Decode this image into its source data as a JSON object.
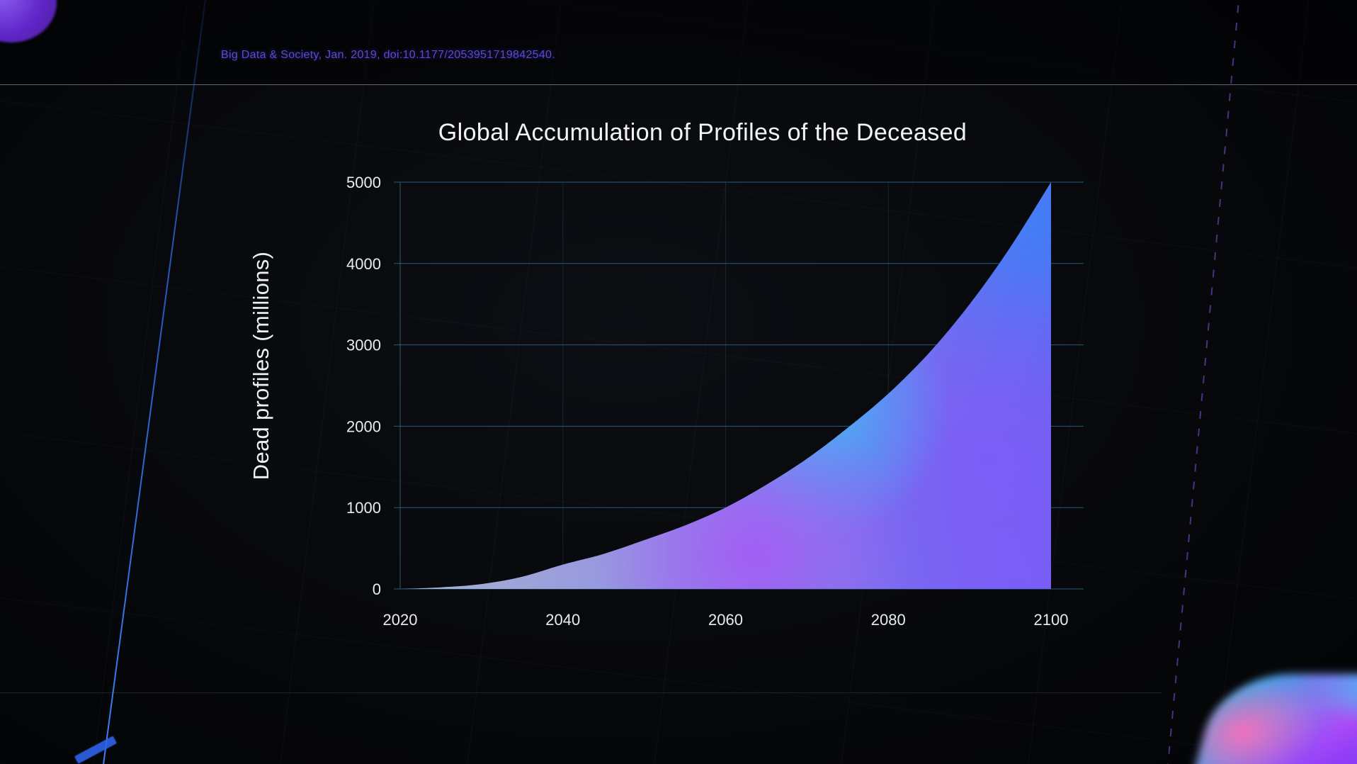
{
  "slide": {
    "citation": "Big Data & Society, Jan. 2019, doi:10.1177/2053951719842540."
  },
  "chart_data": {
    "type": "area",
    "title": "Global Accumulation of Profiles of the Deceased",
    "xlabel": "",
    "ylabel": "Dead profiles (millions)",
    "x": [
      2020,
      2025,
      2030,
      2035,
      2040,
      2045,
      2050,
      2055,
      2060,
      2065,
      2070,
      2075,
      2080,
      2085,
      2090,
      2095,
      2100
    ],
    "values": [
      0,
      20,
      60,
      150,
      300,
      430,
      600,
      780,
      1000,
      1280,
      1600,
      1980,
      2400,
      2900,
      3500,
      4200,
      5000
    ],
    "x_ticks": [
      2020,
      2040,
      2060,
      2080,
      2100
    ],
    "y_ticks": [
      0,
      1000,
      2000,
      3000,
      4000,
      5000
    ],
    "xlim": [
      2020,
      2100
    ],
    "ylim": [
      0,
      5000
    ],
    "grid": true,
    "legend": false,
    "series_name": "Dead profiles",
    "palette": {
      "grid": "#2f7fa3",
      "axis": "#2f7fa3",
      "text": "#e9ebf2",
      "area_base_left": "#a9b4cf",
      "area_base_mid": "#8f8ce6",
      "area_base_right": "#6a63f2",
      "glow_blue": "#3b82f6",
      "glow_cyan": "#38bdf8",
      "glow_purple": "#a855f7",
      "glow_violet": "#7c5cf6",
      "citation_color": "#5a49d6"
    }
  }
}
